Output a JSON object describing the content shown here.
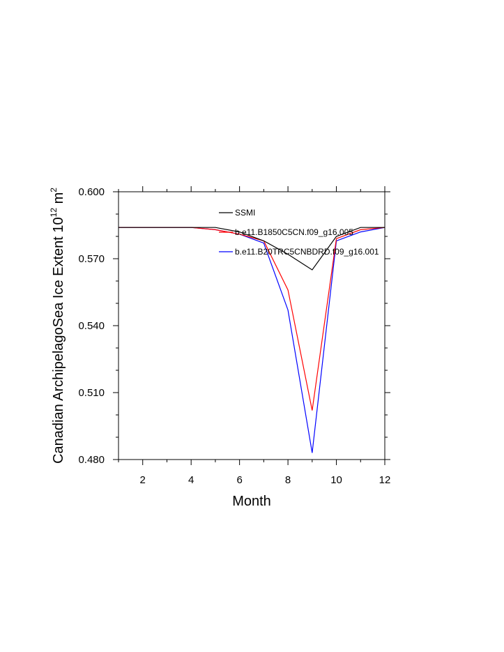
{
  "chart_data": {
    "type": "line",
    "title": "",
    "xlabel": "Month",
    "ylabel": "Canadian ArchipelagoSea Ice Extent 10",
    "ylabel_sup": "12",
    "ylabel_unit": " m",
    "ylabel_unit_sup": "2",
    "xlim": [
      1,
      12
    ],
    "ylim": [
      0.48,
      0.6
    ],
    "x_ticks": [
      2,
      4,
      6,
      8,
      10,
      12
    ],
    "x_tick_labels": [
      "2",
      "4",
      "6",
      "8",
      "10",
      "12"
    ],
    "y_ticks": [
      0.48,
      0.51,
      0.54,
      0.57,
      0.6
    ],
    "y_tick_labels": [
      "0.480",
      "0.510",
      "0.540",
      "0.570",
      "0.600"
    ],
    "x": [
      1,
      2,
      3,
      4,
      5,
      6,
      7,
      8,
      9,
      10,
      11,
      12
    ],
    "legend_position": "top-center",
    "series": [
      {
        "name": "SSMI",
        "color": "#000000",
        "values": [
          0.584,
          0.584,
          0.584,
          0.584,
          0.584,
          0.582,
          0.578,
          0.572,
          0.565,
          0.58,
          0.584,
          0.584
        ]
      },
      {
        "name": "b.e11.B1850C5CN.f09_g16.005",
        "color": "#ff0000",
        "values": [
          0.584,
          0.584,
          0.584,
          0.584,
          0.583,
          0.581,
          0.578,
          0.556,
          0.502,
          0.579,
          0.583,
          0.584
        ]
      },
      {
        "name": "b.e11.B20TRC5CNBDRD.f09_g16.001",
        "color": "#0000ff",
        "values": [
          0.584,
          0.584,
          0.584,
          0.584,
          0.583,
          0.581,
          0.577,
          0.547,
          0.483,
          0.578,
          0.582,
          0.584
        ]
      }
    ]
  }
}
